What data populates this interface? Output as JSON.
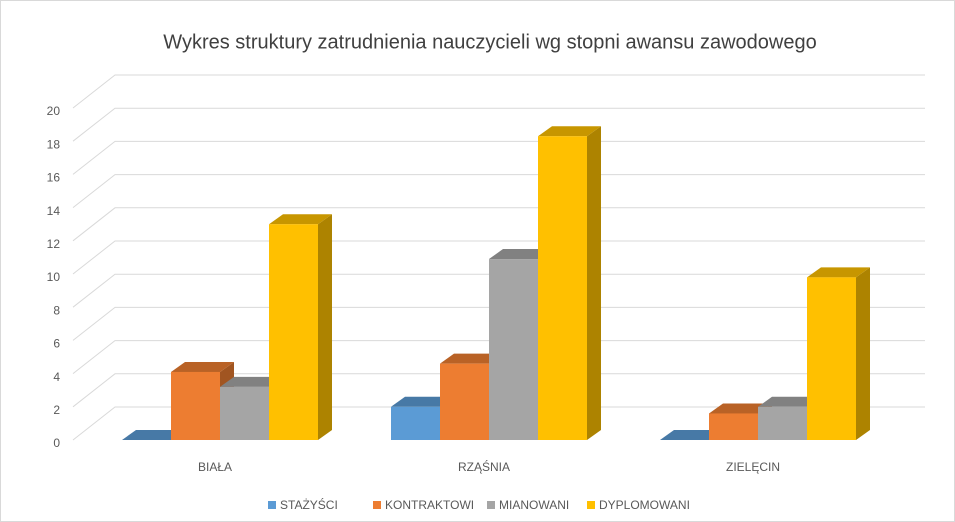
{
  "chart_data": {
    "type": "bar3d",
    "title": "Wykres struktury zatrudnienia nauczycieli wg stopni awansu zawodowego",
    "categories": [
      "BIAŁA",
      "RZĄŚNIA",
      "ZIELĘCIN"
    ],
    "series": [
      {
        "name": "STAŻYŚCI",
        "color": "#5b9bd5",
        "values": [
          0,
          2,
          0
        ]
      },
      {
        "name": "KONTRAKTOWI",
        "color": "#ed7d31",
        "values": [
          4.1,
          4.6,
          1.6
        ]
      },
      {
        "name": "MIANOWANI",
        "color": "#a5a5a5",
        "values": [
          3.2,
          10.9,
          2
        ]
      },
      {
        "name": "DYPLOMOWANI",
        "color": "#ffc000",
        "values": [
          13,
          18.3,
          9.8
        ]
      }
    ],
    "ylim": [
      0,
      20
    ],
    "yticks": [
      0,
      2,
      4,
      6,
      8,
      10,
      12,
      14,
      16,
      18,
      20
    ],
    "grid": true,
    "legend": "bottom"
  }
}
